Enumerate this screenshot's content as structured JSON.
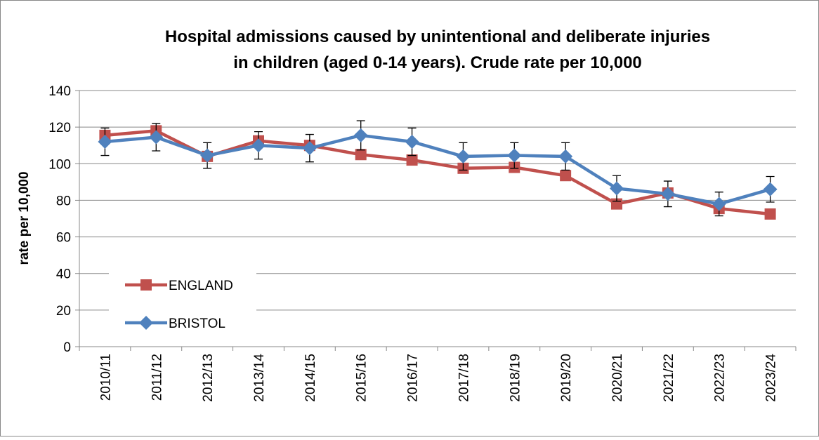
{
  "chart_data": {
    "type": "line",
    "title": [
      "Hospital admissions caused by unintentional and deliberate injuries",
      "in children (aged 0-14 years). Crude rate per 10,000"
    ],
    "y_label": "rate per 10,000",
    "categories": [
      "2010/11",
      "2011/12",
      "2012/13",
      "2013/14",
      "2014/15",
      "2015/16",
      "2016/17",
      "2017/18",
      "2018/19",
      "2019/20",
      "2020/21",
      "2021/22",
      "2022/23",
      "2023/24"
    ],
    "series": [
      {
        "name": "ENGLAND",
        "color": "#c0504d",
        "marker": "square",
        "values": [
          115.5,
          118,
          104,
          112.5,
          110,
          105,
          102,
          97.5,
          98,
          93.5,
          78,
          84,
          75.5,
          72.5
        ]
      },
      {
        "name": "BRISTOL",
        "color": "#4f81bd",
        "marker": "diamond",
        "values": [
          112,
          114.5,
          104.5,
          110,
          108.5,
          115.5,
          112,
          104,
          104.5,
          104,
          86.5,
          83.5,
          78,
          86
        ],
        "errors": [
          7.5,
          7.5,
          7,
          7.5,
          7.5,
          8,
          7.5,
          7.5,
          7,
          7.5,
          7,
          7,
          6.5,
          7
        ]
      }
    ],
    "ylim": [
      0,
      140
    ],
    "yticks": [
      0,
      20,
      40,
      60,
      80,
      100,
      120,
      140
    ],
    "grid": true,
    "legend": "lower left"
  }
}
